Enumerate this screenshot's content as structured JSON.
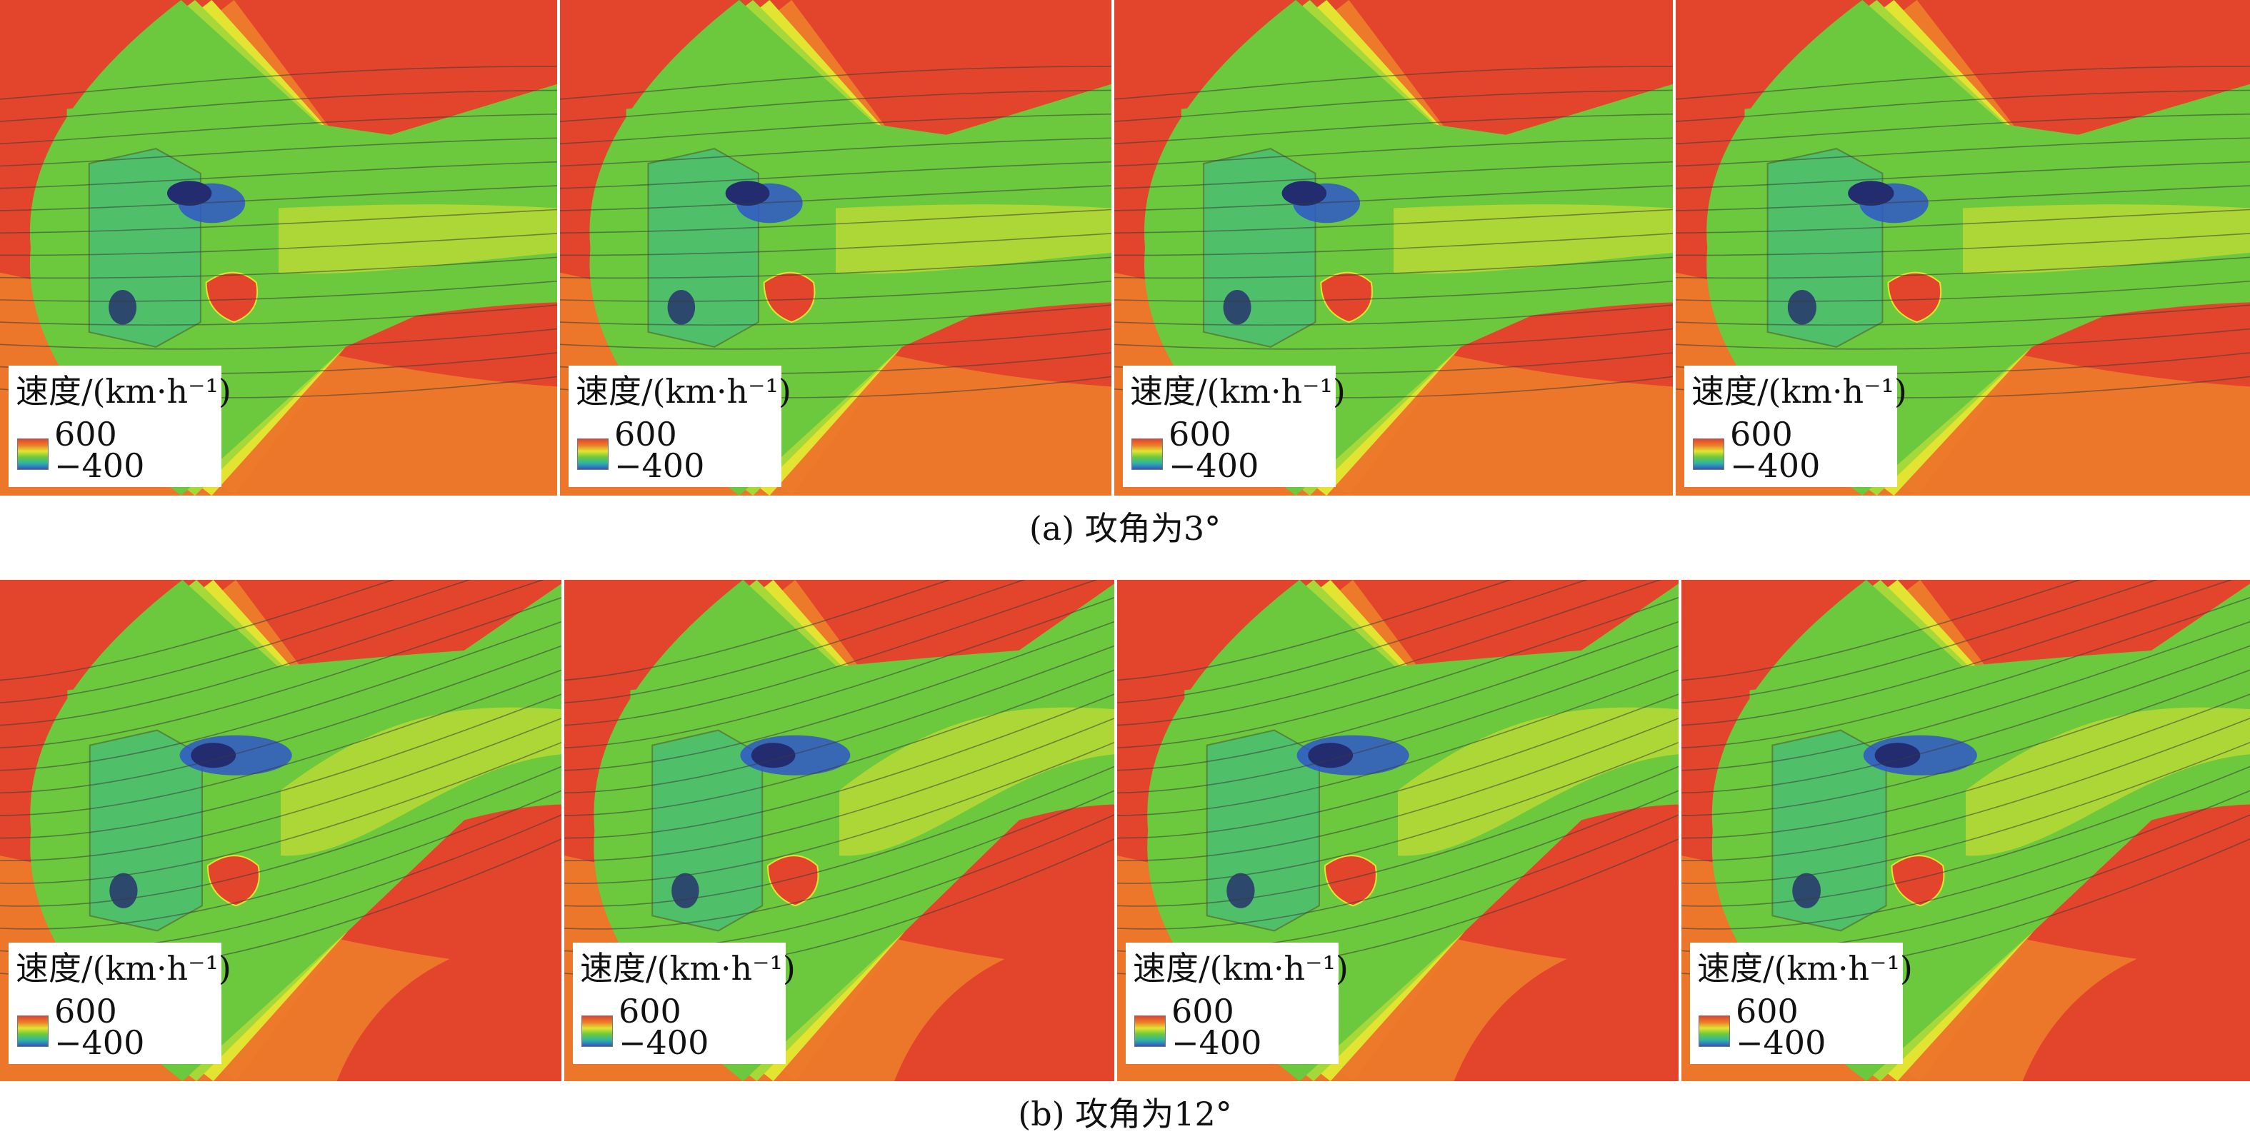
{
  "rows": [
    {
      "caption": "(a) 攻角为3°",
      "panels": [
        {
          "legend_title": "速度/(km·h⁻¹)",
          "legend_max": "600",
          "legend_min": "−400"
        },
        {
          "legend_title": "速度/(km·h⁻¹)",
          "legend_max": "600",
          "legend_min": "−400"
        },
        {
          "legend_title": "速度/(km·h⁻¹)",
          "legend_max": "600",
          "legend_min": "−400"
        },
        {
          "legend_title": "速度/(km·h⁻¹)",
          "legend_max": "600",
          "legend_min": "−400"
        }
      ]
    },
    {
      "caption": "(b) 攻角为12°",
      "panels": [
        {
          "legend_title": "速度/(km·h⁻¹)",
          "legend_max": "600",
          "legend_min": "−400"
        },
        {
          "legend_title": "速度/(km·h⁻¹)",
          "legend_max": "600",
          "legend_min": "−400"
        },
        {
          "legend_title": "速度/(km·h⁻¹)",
          "legend_max": "600",
          "legend_min": "−400"
        },
        {
          "legend_title": "速度/(km·h⁻¹)",
          "legend_max": "600",
          "legend_min": "−400"
        }
      ]
    }
  ],
  "colors": {
    "red": "#e2452c",
    "orange": "#ec7a2a",
    "yellow": "#e3e431",
    "light_green": "#a6d83a",
    "green": "#6cc83c",
    "cyan": "#2fb5a3",
    "blue": "#2f57c9",
    "dark_blue": "#232c6e",
    "streamline": "#3a3a3a"
  }
}
